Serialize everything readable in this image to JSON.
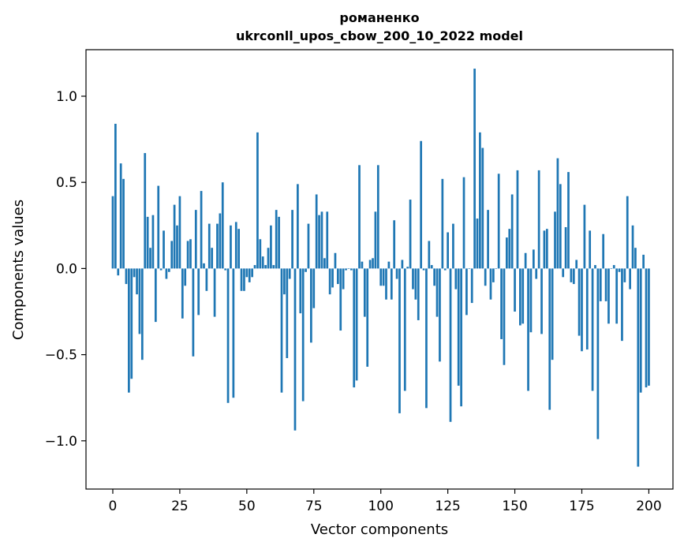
{
  "chart_data": {
    "type": "bar",
    "title": "романенко",
    "subtitle": "ukrconll_upos_cbow_200_10_2022 model",
    "xlabel": "Vector components",
    "ylabel": "Components values",
    "xlim": [
      -10,
      209
    ],
    "ylim": [
      -1.28,
      1.27
    ],
    "xticks": [
      0,
      25,
      50,
      75,
      100,
      125,
      150,
      175,
      200
    ],
    "yticks": [
      -1.0,
      -0.5,
      0.0,
      0.5,
      1.0
    ],
    "ytick_labels": [
      "−1.0",
      "−0.5",
      "0.0",
      "0.5",
      "1.0"
    ],
    "bar_color": "#1f77b4",
    "values": [
      0.42,
      0.84,
      -0.04,
      0.61,
      0.52,
      -0.09,
      -0.72,
      -0.64,
      -0.05,
      -0.15,
      -0.38,
      -0.53,
      0.67,
      0.3,
      0.12,
      0.31,
      -0.31,
      0.48,
      -0.01,
      0.22,
      -0.06,
      -0.02,
      0.16,
      0.37,
      0.25,
      0.42,
      -0.29,
      -0.1,
      0.16,
      0.17,
      -0.51,
      0.34,
      -0.27,
      0.45,
      0.03,
      -0.13,
      0.26,
      0.12,
      -0.28,
      0.26,
      0.32,
      0.5,
      -0.01,
      -0.78,
      0.25,
      -0.75,
      0.27,
      0.23,
      -0.13,
      -0.13,
      -0.05,
      -0.08,
      -0.05,
      0.02,
      0.79,
      0.17,
      0.07,
      0.02,
      0.12,
      0.25,
      0.02,
      0.34,
      0.3,
      -0.72,
      -0.15,
      -0.52,
      -0.06,
      0.34,
      -0.94,
      0.49,
      -0.26,
      -0.77,
      -0.02,
      0.26,
      -0.43,
      -0.23,
      0.43,
      0.31,
      0.33,
      0.06,
      0.33,
      -0.15,
      -0.11,
      0.09,
      -0.09,
      -0.36,
      -0.12,
      -0.01,
      0.0,
      -0.01,
      -0.69,
      -0.65,
      0.6,
      0.04,
      -0.28,
      -0.57,
      0.05,
      0.06,
      0.33,
      0.6,
      -0.1,
      -0.1,
      -0.18,
      0.04,
      -0.18,
      0.28,
      -0.06,
      -0.84,
      0.05,
      -0.71,
      0.01,
      0.4,
      -0.12,
      -0.18,
      -0.3,
      0.74,
      -0.01,
      -0.81,
      0.16,
      0.02,
      -0.1,
      -0.28,
      -0.54,
      0.52,
      -0.01,
      0.21,
      -0.89,
      0.26,
      -0.12,
      -0.68,
      -0.8,
      0.53,
      -0.27,
      0.0,
      -0.2,
      1.16,
      0.29,
      0.79,
      0.7,
      -0.1,
      0.34,
      -0.18,
      -0.08,
      0.0,
      0.55,
      -0.41,
      -0.56,
      0.18,
      0.23,
      0.43,
      -0.25,
      0.57,
      -0.33,
      -0.32,
      0.09,
      -0.71,
      -0.37,
      0.11,
      -0.06,
      0.57,
      -0.38,
      0.22,
      0.23,
      -0.82,
      -0.53,
      0.33,
      0.64,
      0.49,
      -0.05,
      0.24,
      0.56,
      -0.08,
      -0.09,
      0.05,
      -0.39,
      -0.48,
      0.37,
      -0.47,
      0.22,
      -0.71,
      0.02,
      -0.99,
      -0.19,
      0.2,
      -0.19,
      -0.32,
      0.0,
      0.02,
      -0.32,
      -0.02,
      -0.42,
      -0.08,
      0.42,
      -0.12,
      0.25,
      0.12,
      -1.15,
      -0.72,
      0.08,
      -0.69,
      -0.68
    ]
  }
}
